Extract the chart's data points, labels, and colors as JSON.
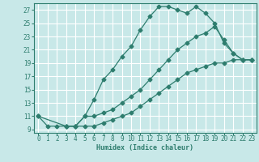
{
  "xlabel": "Humidex (Indice chaleur)",
  "bg_color": "#c8e8e8",
  "grid_color": "#ffffff",
  "line_color": "#2e7d6e",
  "xlim": [
    -0.5,
    23.5
  ],
  "ylim": [
    8.5,
    28.0
  ],
  "xticks": [
    0,
    1,
    2,
    3,
    4,
    5,
    6,
    7,
    8,
    9,
    10,
    11,
    12,
    13,
    14,
    15,
    16,
    17,
    18,
    19,
    20,
    21,
    22,
    23
  ],
  "yticks": [
    9,
    11,
    13,
    15,
    17,
    19,
    21,
    23,
    25,
    27
  ],
  "line1_x": [
    0,
    1,
    2,
    3,
    4,
    5,
    6,
    7,
    8,
    9,
    10,
    11,
    12,
    13,
    14,
    15,
    16,
    17,
    18,
    19,
    20,
    21,
    22,
    23
  ],
  "line1_y": [
    11,
    9.5,
    9.5,
    9.5,
    9.5,
    11,
    13.5,
    16.5,
    18,
    20,
    21.5,
    24,
    26,
    27.5,
    27.5,
    27.0,
    26.5,
    27.5,
    26.5,
    25,
    22,
    20.5,
    19.5,
    19.5
  ],
  "line2_x": [
    0,
    3,
    4,
    5,
    6,
    7,
    8,
    9,
    10,
    11,
    12,
    13,
    14,
    15,
    16,
    17,
    18,
    19,
    20,
    21,
    22,
    23
  ],
  "line2_y": [
    11,
    9.5,
    9.5,
    11,
    11,
    11.5,
    12,
    13,
    14,
    15,
    16.5,
    18,
    19.5,
    21,
    22,
    23,
    23.5,
    24.5,
    22.5,
    20.5,
    19.5,
    19.5
  ],
  "line3_x": [
    3,
    4,
    5,
    6,
    7,
    8,
    9,
    10,
    11,
    12,
    13,
    14,
    15,
    16,
    17,
    18,
    19,
    20,
    21,
    22,
    23
  ],
  "line3_y": [
    9.5,
    9.5,
    9.5,
    9.5,
    10,
    10.5,
    11,
    11.5,
    12.5,
    13.5,
    14.5,
    15.5,
    16.5,
    17.5,
    18,
    18.5,
    19,
    19,
    19.5,
    19.5,
    19.5
  ],
  "xlabel_fontsize": 6.0,
  "tick_fontsize": 5.5
}
